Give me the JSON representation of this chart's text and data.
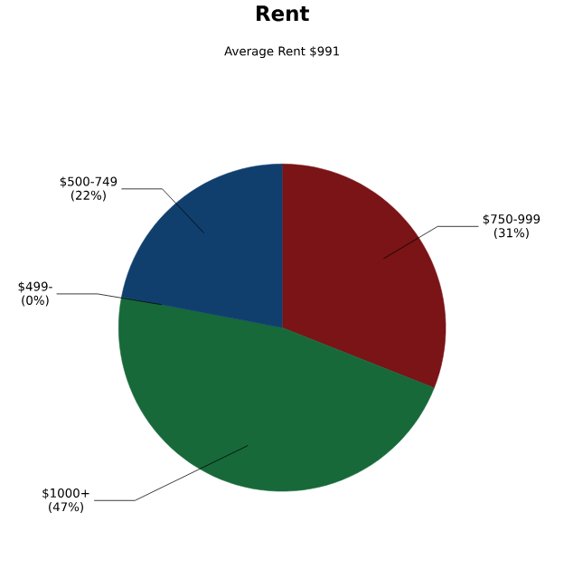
{
  "chart_data": {
    "type": "pie",
    "title": "Rent",
    "subtitle": "Average Rent  $991",
    "categories": [
      "$750-999",
      "$1000+",
      "$499-",
      "$500-749"
    ],
    "values": [
      31,
      47,
      0,
      22
    ],
    "colors": [
      "#7a1416",
      "#17693a",
      "#8a8a8a",
      "#103f6e"
    ],
    "value_labels": [
      "(31%)",
      "(47%)",
      "(0%)",
      "(22%)"
    ]
  }
}
